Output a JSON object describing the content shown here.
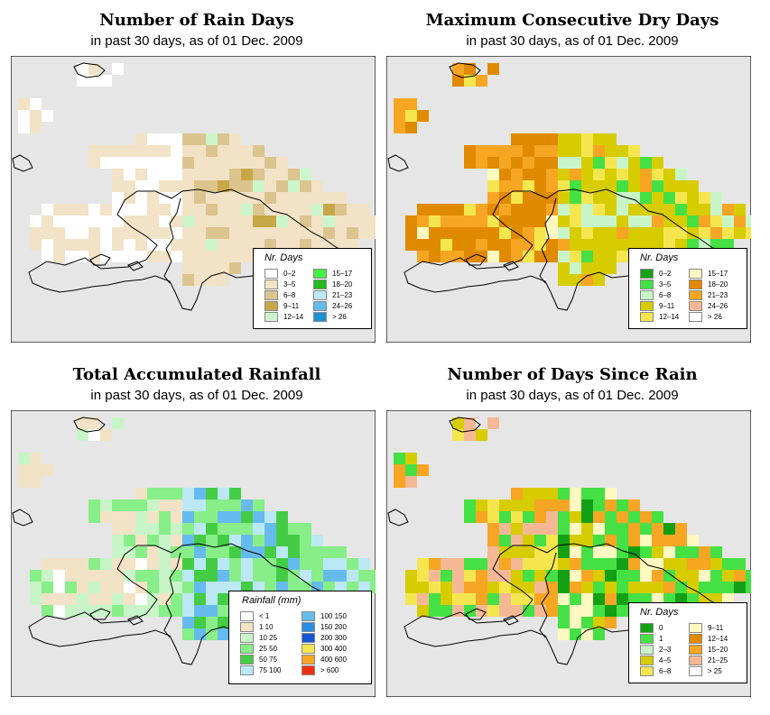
{
  "panels": [
    {
      "id": "rain-days",
      "title": "Number of Rain Days",
      "subtitle": "in past 30 days, as of  01 Dec. 2009",
      "legend_title": "Nr. Days",
      "legend": [
        {
          "label": "0–2",
          "color": "#ffffff"
        },
        {
          "label": "3–5",
          "color": "#f2e2c6"
        },
        {
          "label": "6–8",
          "color": "#dcc48e"
        },
        {
          "label": "9–11",
          "color": "#c8a846"
        },
        {
          "label": "12–14",
          "color": "#ccf5cc"
        },
        {
          "label": "15–17",
          "color": "#44ee44"
        },
        {
          "label": "18–20",
          "color": "#22bb22"
        },
        {
          "label": "21–23",
          "color": "#bbe8f5"
        },
        {
          "label": "24–26",
          "color": "#66bbee"
        },
        {
          "label": "> 26",
          "color": "#1f8fd0"
        }
      ]
    },
    {
      "id": "dry-days",
      "title": "Maximum Consecutive Dry Days",
      "subtitle": "in past 30 days, as of  01 Dec. 2009",
      "legend_title": "Nr. Days",
      "legend": [
        {
          "label": "0–2",
          "color": "#14a014"
        },
        {
          "label": "3–5",
          "color": "#44e044"
        },
        {
          "label": "6–8",
          "color": "#c8f5c8"
        },
        {
          "label": "9–11",
          "color": "#d6cc00"
        },
        {
          "label": "12–14",
          "color": "#f5e650"
        },
        {
          "label": "15–17",
          "color": "#fff8c0"
        },
        {
          "label": "18–20",
          "color": "#e08a00"
        },
        {
          "label": "21–23",
          "color": "#f6a623"
        },
        {
          "label": "24–26",
          "color": "#f5b895"
        },
        {
          "label": "> 26",
          "color": "#ffffff"
        }
      ]
    },
    {
      "id": "rainfall",
      "title": "Total Accumulated Rainfall",
      "subtitle": "in past 30 days, as of  01 Dec. 2009",
      "legend_title": "Rainfall (mm)",
      "legend": [
        {
          "label": "< 1",
          "color": "#ffffff"
        },
        {
          "label": "1    10",
          "color": "#f2e2c6"
        },
        {
          "label": "10    25",
          "color": "#c8f5c8"
        },
        {
          "label": "25    50",
          "color": "#88ee88"
        },
        {
          "label": "50    75",
          "color": "#44cc44"
        },
        {
          "label": "75   100",
          "color": "#bbe8f5"
        },
        {
          "label": "100   150",
          "color": "#66bbee"
        },
        {
          "label": "150   200",
          "color": "#2a8ee6"
        },
        {
          "label": "200   300",
          "color": "#1555d8"
        },
        {
          "label": "300   400",
          "color": "#f5e650"
        },
        {
          "label": "400   600",
          "color": "#f6a623"
        },
        {
          "label": "> 600",
          "color": "#f03010"
        }
      ]
    },
    {
      "id": "days-since",
      "title": "Number of Days Since Rain",
      "subtitle": "in past 30 days, as of  01 Dec. 2009",
      "legend_title": "Nr. Days",
      "legend": [
        {
          "label": "0",
          "color": "#14a014"
        },
        {
          "label": "1",
          "color": "#44e044"
        },
        {
          "label": "2–3",
          "color": "#c8f5c8"
        },
        {
          "label": "4–5",
          "color": "#d6cc00"
        },
        {
          "label": "6–8",
          "color": "#f5e650"
        },
        {
          "label": "9–11",
          "color": "#fff8c0"
        },
        {
          "label": "12–14",
          "color": "#e08a00"
        },
        {
          "label": "15–20",
          "color": "#f6a623"
        },
        {
          "label": "21–25",
          "color": "#f5b895"
        },
        {
          "label": "> 25",
          "color": "#ffffff"
        }
      ]
    }
  ],
  "colors": {
    "ocean": "#e6e6e6",
    "border": "#000000"
  }
}
